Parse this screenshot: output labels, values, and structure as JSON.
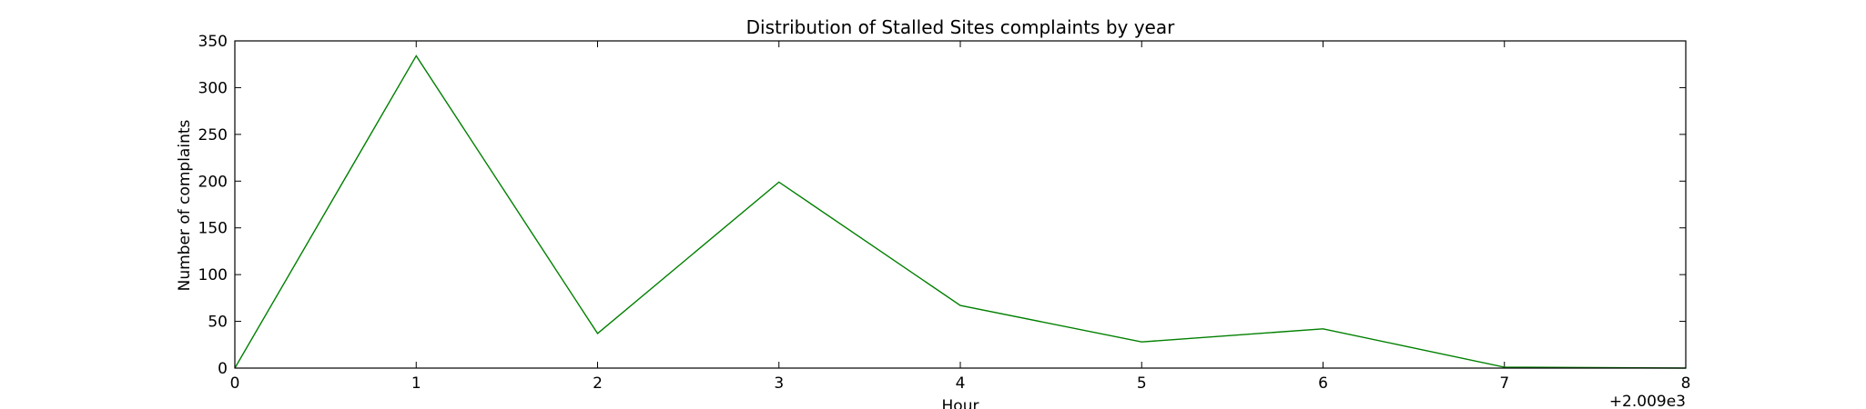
{
  "chart_data": {
    "type": "line",
    "title": "Distribution of  Stalled Sites complaints by year",
    "xlabel": "Hour",
    "ylabel": "Number of complaints",
    "x_offset_label": "+2.009e3",
    "x": [
      0,
      1,
      2,
      3,
      4,
      5,
      6,
      7,
      8
    ],
    "series": [
      {
        "values": [
          0,
          334,
          37,
          199,
          67,
          28,
          42,
          1,
          0
        ],
        "color": "#008000"
      }
    ],
    "xlim": [
      0,
      8
    ],
    "ylim": [
      0,
      350
    ],
    "xticks": [
      0,
      1,
      2,
      3,
      4,
      5,
      6,
      7,
      8
    ],
    "yticks": [
      0,
      50,
      100,
      150,
      200,
      250,
      300,
      350
    ],
    "grid": false,
    "legend": "none"
  }
}
